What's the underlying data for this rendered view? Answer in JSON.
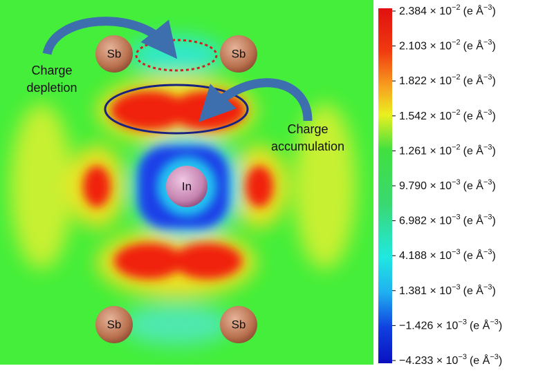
{
  "figure": {
    "atoms": [
      "Sb",
      "Sb",
      "In",
      "Sb",
      "Sb"
    ],
    "annotations": {
      "depletion": [
        "Charge",
        "depletion"
      ],
      "accumulation": [
        "Charge",
        "accumulation"
      ]
    },
    "colorbar": {
      "unit": {
        "open": "(e Å",
        "exponent": "−3",
        "close": ")"
      },
      "ticks": [
        {
          "mantissa": "2.384 × 10",
          "exponent": "−2"
        },
        {
          "mantissa": "2.103 × 10",
          "exponent": "−2"
        },
        {
          "mantissa": "1.822 × 10",
          "exponent": "−2"
        },
        {
          "mantissa": "1.542 × 10",
          "exponent": "−2"
        },
        {
          "mantissa": "1.261 × 10",
          "exponent": "−2"
        },
        {
          "mantissa": "9.790 × 10",
          "exponent": "−3"
        },
        {
          "mantissa": "6.982 × 10",
          "exponent": "−3"
        },
        {
          "mantissa": "4.188 × 10",
          "exponent": "−3"
        },
        {
          "mantissa": "1.381 × 10",
          "exponent": "−3"
        },
        {
          "mantissa": "−1.426 × 10",
          "exponent": "−3"
        },
        {
          "mantissa": "−4.233 × 10",
          "exponent": "−3"
        }
      ]
    }
  }
}
